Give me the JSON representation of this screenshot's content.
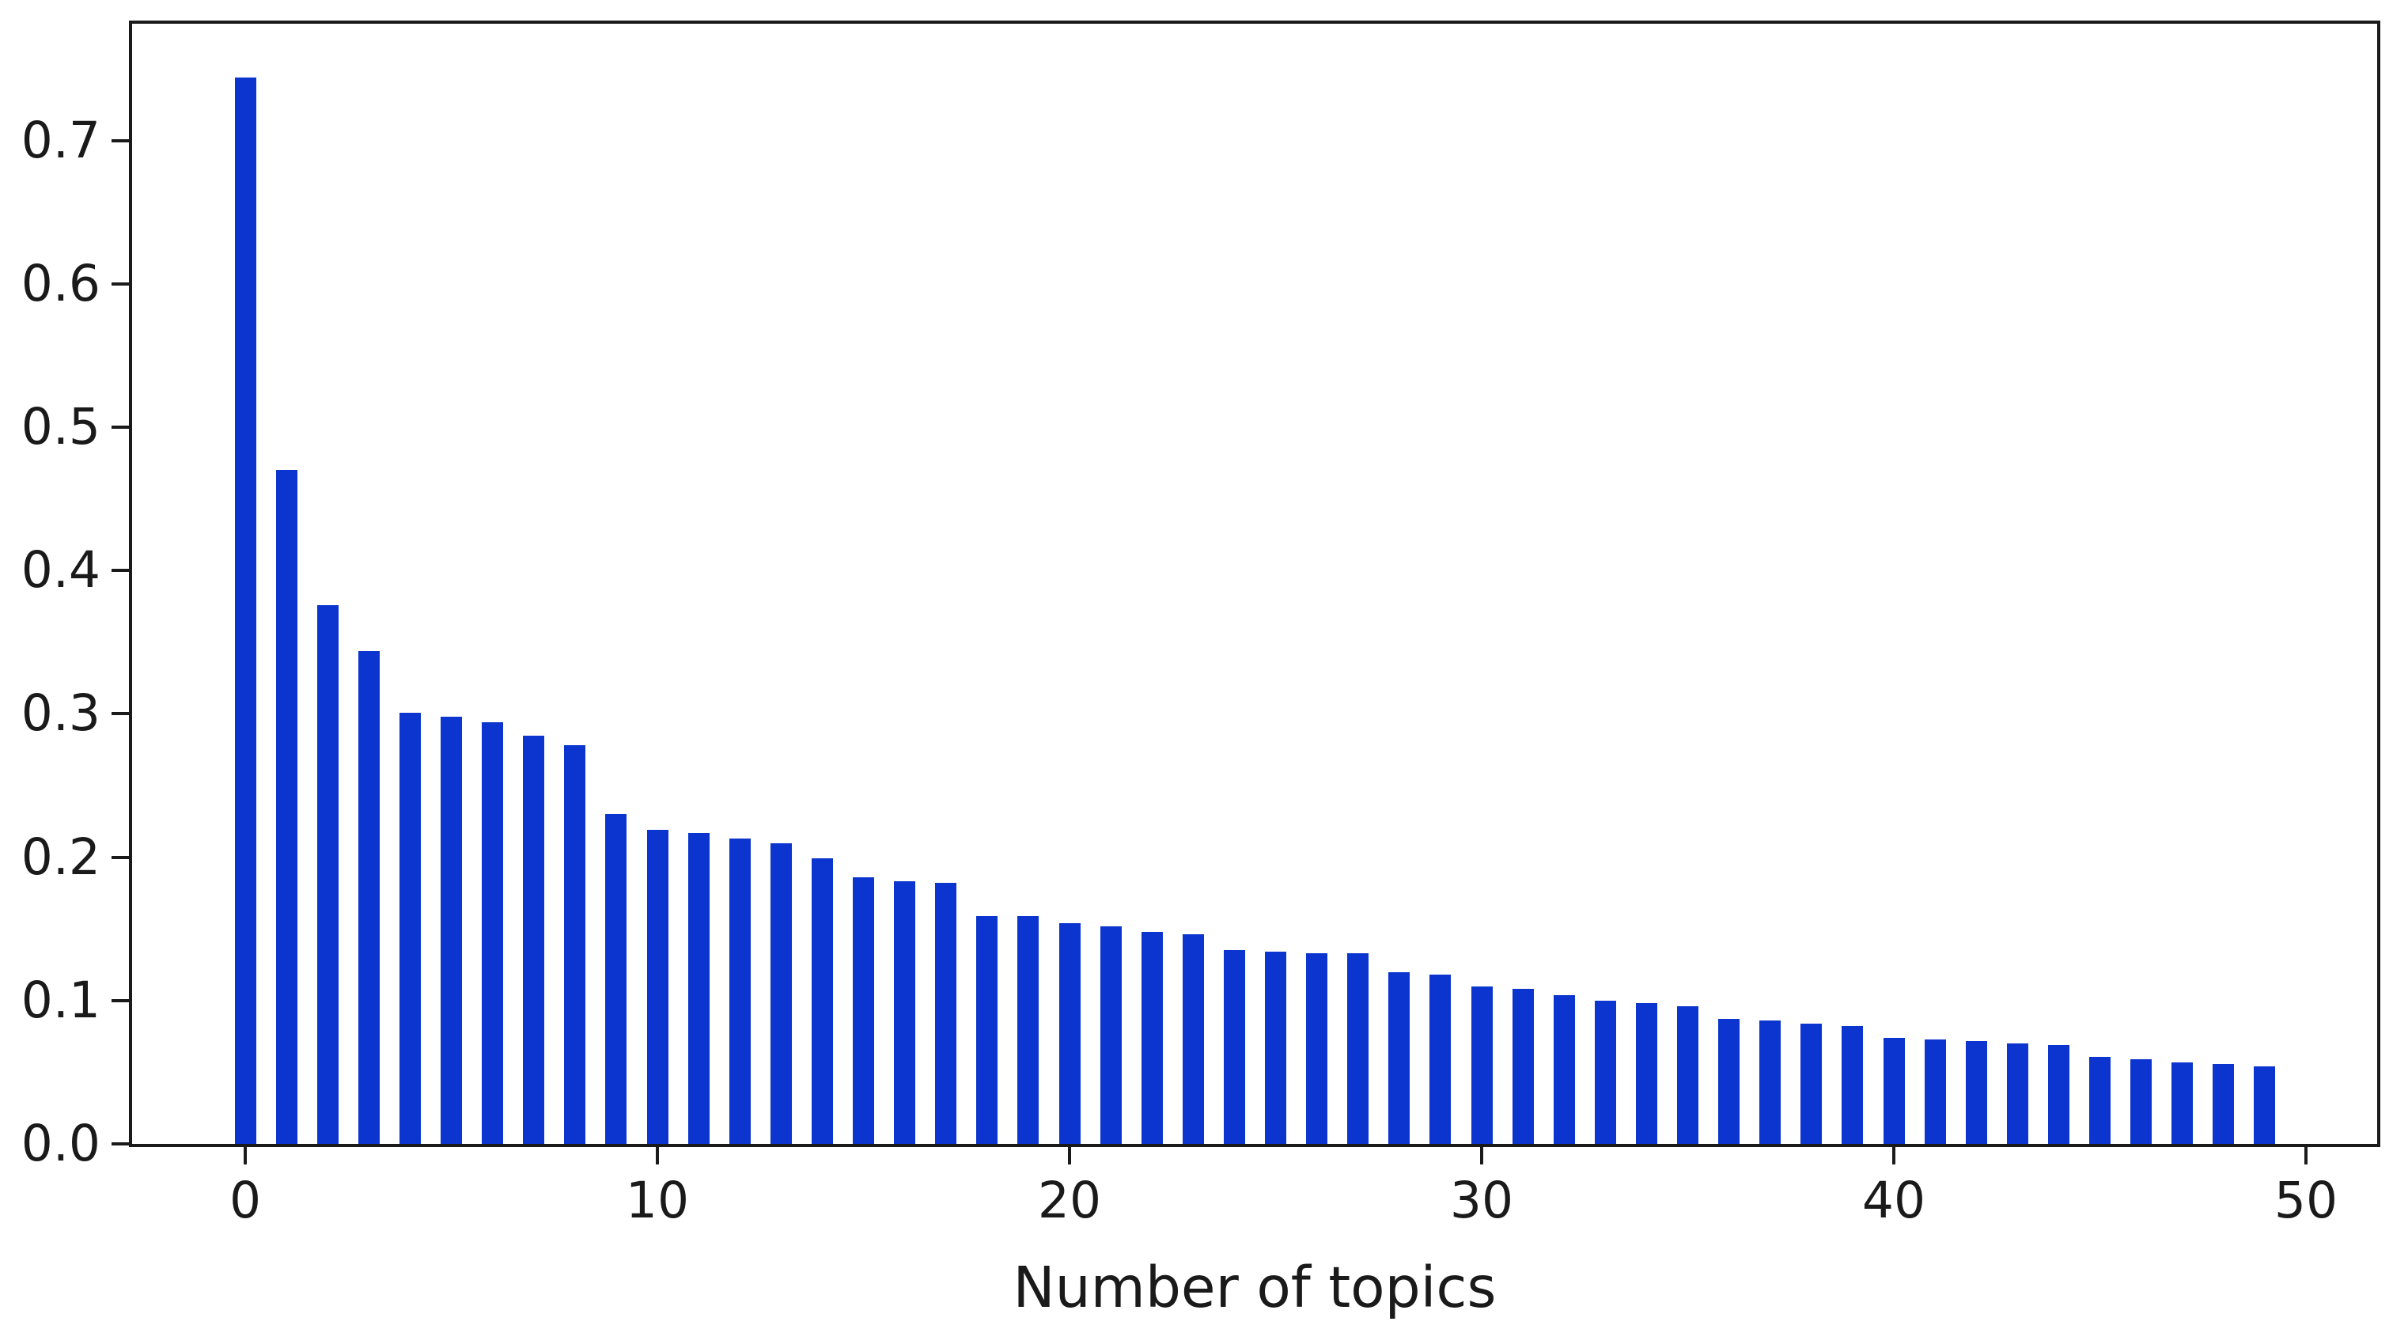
{
  "chart_data": {
    "type": "bar",
    "title": "",
    "xlabel": "Number of topics",
    "ylabel": "",
    "categories": [
      0,
      1,
      2,
      3,
      4,
      5,
      6,
      7,
      8,
      9,
      10,
      11,
      12,
      13,
      14,
      15,
      16,
      17,
      18,
      19,
      20,
      21,
      22,
      23,
      24,
      25,
      26,
      27,
      28,
      29,
      30,
      31,
      32,
      33,
      34,
      35,
      36,
      37,
      38,
      39,
      40,
      41,
      42,
      43,
      44,
      45,
      46,
      47,
      48,
      49
    ],
    "values": [
      0.744,
      0.47,
      0.376,
      0.344,
      0.301,
      0.298,
      0.294,
      0.285,
      0.278,
      0.23,
      0.219,
      0.217,
      0.213,
      0.21,
      0.199,
      0.186,
      0.183,
      0.182,
      0.159,
      0.159,
      0.154,
      0.152,
      0.148,
      0.146,
      0.135,
      0.134,
      0.133,
      0.133,
      0.12,
      0.118,
      0.11,
      0.108,
      0.104,
      0.1,
      0.098,
      0.096,
      0.087,
      0.086,
      0.084,
      0.082,
      0.074,
      0.073,
      0.072,
      0.07,
      0.069,
      0.061,
      0.059,
      0.057,
      0.056,
      0.054
    ],
    "x_tick_labels": [
      "0",
      "10",
      "20",
      "30",
      "40",
      "50"
    ],
    "x_tick_values": [
      0,
      10,
      20,
      30,
      40,
      50
    ],
    "y_tick_labels": [
      "0.0",
      "0.1",
      "0.2",
      "0.3",
      "0.4",
      "0.5",
      "0.6",
      "0.7"
    ],
    "y_tick_values": [
      0.0,
      0.1,
      0.2,
      0.3,
      0.4,
      0.5,
      0.6,
      0.7
    ],
    "xlim": [
      -2.7,
      51.7
    ],
    "ylim": [
      0,
      0.782
    ],
    "grid": false,
    "legend_position": "none",
    "bar_color": "#0b35ce",
    "axis_color": "#1a1a1a",
    "background_color": "#ffffff"
  }
}
